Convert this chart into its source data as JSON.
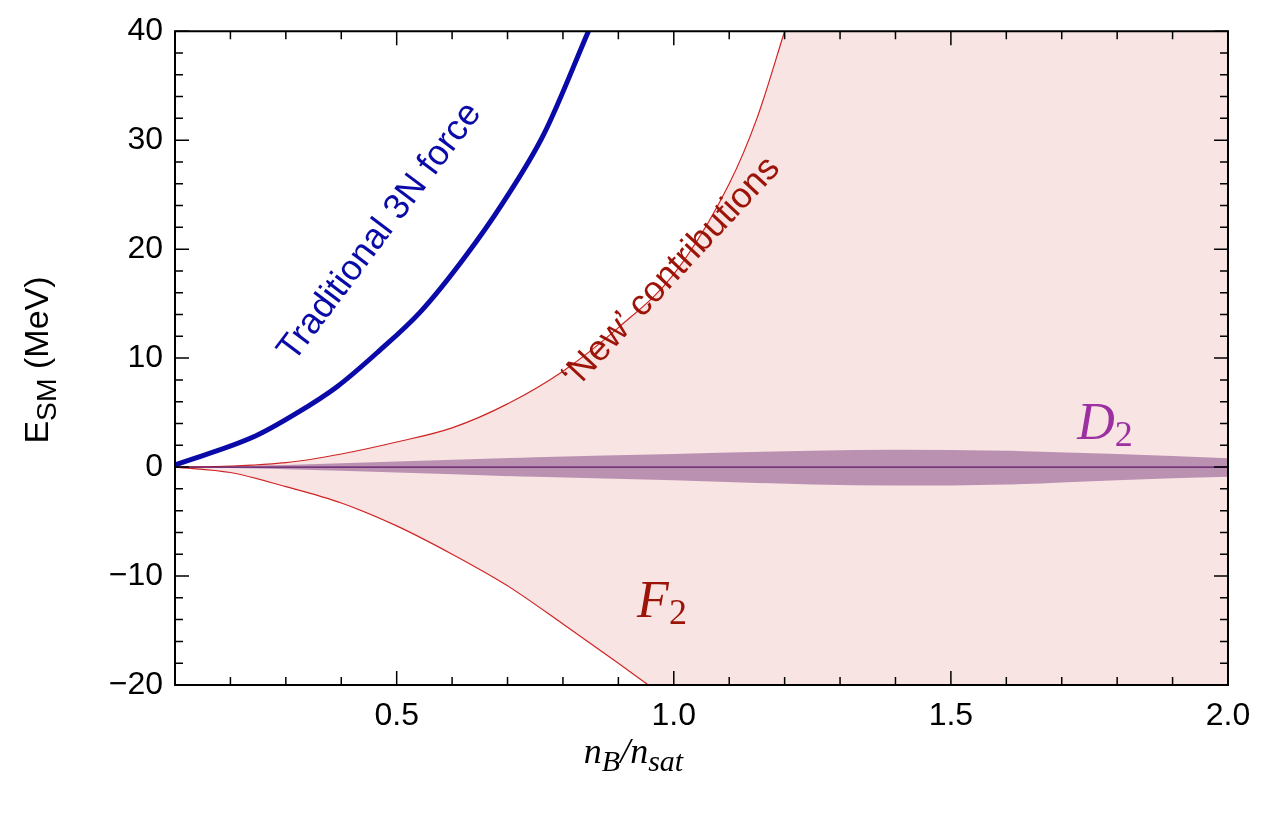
{
  "chart_data": {
    "type": "line",
    "xlabel": "n$_{B}$/n$_{sat}$",
    "ylabel": "E$_{SM}$ (MeV)",
    "xlim": [
      0.1,
      2.0
    ],
    "ylim": [
      -20,
      40
    ],
    "xticks": [
      {
        "value": 0.2,
        "label": null
      },
      {
        "value": 0.3,
        "label": null
      },
      {
        "value": 0.4,
        "label": null
      },
      0.5,
      {
        "value": 0.6,
        "label": null
      },
      {
        "value": 0.7,
        "label": null
      },
      {
        "value": 0.8,
        "label": null
      },
      {
        "value": 0.9,
        "label": null
      },
      {
        "value": 1.0,
        "label": "1.0"
      },
      {
        "value": 1.1,
        "label": null
      },
      {
        "value": 1.2,
        "label": null
      },
      {
        "value": 1.3,
        "label": null
      },
      {
        "value": 1.4,
        "label": null
      },
      1.5,
      {
        "value": 1.6,
        "label": null
      },
      {
        "value": 1.7,
        "label": null
      },
      {
        "value": 1.8,
        "label": null
      },
      {
        "value": 1.9,
        "label": null
      },
      {
        "value": 2.0,
        "label": "2.0"
      }
    ],
    "yticks": [
      {
        "value": -20,
        "label": "−20"
      },
      {
        "value": -18,
        "label": null
      },
      {
        "value": -16,
        "label": null
      },
      {
        "value": -14,
        "label": null
      },
      {
        "value": -12,
        "label": null
      },
      {
        "value": -10,
        "label": "−10"
      },
      {
        "value": -8,
        "label": null
      },
      {
        "value": -6,
        "label": null
      },
      {
        "value": -4,
        "label": null
      },
      {
        "value": -2,
        "label": null
      },
      0,
      {
        "value": 2,
        "label": null
      },
      {
        "value": 4,
        "label": null
      },
      {
        "value": 6,
        "label": null
      },
      {
        "value": 8,
        "label": null
      },
      10,
      {
        "value": 12,
        "label": null
      },
      {
        "value": 14,
        "label": null
      },
      {
        "value": 16,
        "label": null
      },
      {
        "value": 18,
        "label": null
      },
      20,
      {
        "value": 22,
        "label": null
      },
      {
        "value": 24,
        "label": null
      },
      {
        "value": 26,
        "label": null
      },
      {
        "value": 28,
        "label": null
      },
      30,
      {
        "value": 32,
        "label": null
      },
      {
        "value": 34,
        "label": null
      },
      {
        "value": 36,
        "label": null
      },
      {
        "value": 38,
        "label": null
      },
      40
    ],
    "series": [
      {
        "color": "#d02424",
        "x": [
          0.1,
          0.2,
          0.3,
          0.4,
          0.5,
          0.6,
          0.7,
          0.8,
          0.9,
          1.0,
          1.1,
          1.15,
          1.2
        ],
        "values": [
          0,
          0.1,
          0.4,
          1.2,
          2.3,
          3.6,
          5.8,
          8.8,
          12.8,
          17.7,
          26,
          32,
          40
        ]
      },
      {
        "color": "#d02424",
        "x": [
          0.1,
          0.2,
          0.3,
          0.4,
          0.5,
          0.6,
          0.7,
          0.8,
          0.9,
          0.954
        ],
        "values": [
          0,
          -0.5,
          -1.8,
          -3.3,
          -5.4,
          -8.0,
          -10.9,
          -14.4,
          -18.0,
          -20
        ]
      },
      {
        "color": "#5e1466",
        "x": [
          0.1,
          0.3,
          0.5,
          0.75,
          1.0,
          1.25,
          1.4,
          1.6,
          1.8,
          2.0
        ],
        "values": [
          0,
          0,
          0,
          0,
          0,
          0,
          0,
          0,
          0,
          0
        ],
        "upper": [
          0,
          0.2,
          0.5,
          0.9,
          1.2,
          1.5,
          1.6,
          1.5,
          1.2,
          0.8
        ],
        "lower": [
          0,
          -0.2,
          -0.5,
          -0.9,
          -1.2,
          -1.6,
          -1.7,
          -1.6,
          -1.2,
          -0.9
        ]
      },
      {
        "color": "#0a0aa8",
        "x": [
          0.1,
          0.243,
          0.318,
          0.393,
          0.467,
          0.542,
          0.616,
          0.691,
          0.766,
          0.846
        ],
        "values": [
          0.2,
          2.8,
          4.9,
          7.4,
          10.6,
          14.2,
          18.8,
          24.2,
          30.6,
          40
        ]
      }
    ],
    "annotations": [
      "Traditional 3N force",
      "‘New’ contributions",
      "D$_{2}$",
      "F$_{2}$"
    ]
  }
}
